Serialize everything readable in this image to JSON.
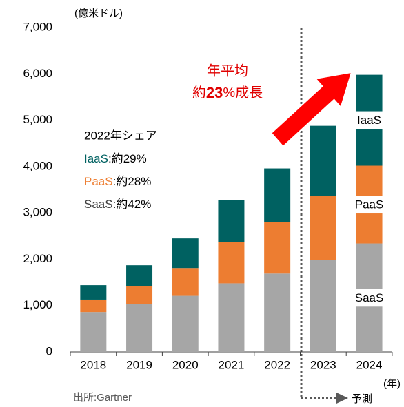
{
  "chart_data": {
    "type": "stacked_bar",
    "unit_label": "(億米ドル)",
    "categories": [
      "2018",
      "2019",
      "2020",
      "2021",
      "2022",
      "2023",
      "2024"
    ],
    "series": [
      {
        "name": "SaaS",
        "color": "#a6a6a6",
        "values": [
          860,
          1030,
          1210,
          1480,
          1690,
          1990,
          2340
        ]
      },
      {
        "name": "PaaS",
        "color": "#ed7d31",
        "values": [
          270,
          390,
          600,
          890,
          1110,
          1370,
          1680
        ]
      },
      {
        "name": "IaaS",
        "color": "#006161",
        "values": [
          310,
          450,
          640,
          900,
          1160,
          1520,
          1960
        ]
      }
    ],
    "ylim": [
      0,
      7000
    ],
    "yticks": [
      0,
      {
        "value": 1000,
        "label": "1,000"
      },
      {
        "value": 2000,
        "label": "2,000"
      },
      {
        "value": 3000,
        "label": "3,000"
      },
      {
        "value": 4000,
        "label": "4,000"
      },
      {
        "value": 5000,
        "label": "5,000"
      },
      {
        "value": 6000,
        "label": "6,000"
      },
      {
        "value": 7000,
        "label": "7,000"
      }
    ],
    "xlabel": "(年)",
    "growth": {
      "line1": "年平均",
      "line2": [
        "約",
        "23",
        "%成長"
      ]
    },
    "share_box": {
      "title": "2022年シェア",
      "shares": [
        ":約42%",
        ":約28%",
        ":約29%"
      ]
    },
    "forecast_label": "予測",
    "source": "出所:Gartner"
  }
}
